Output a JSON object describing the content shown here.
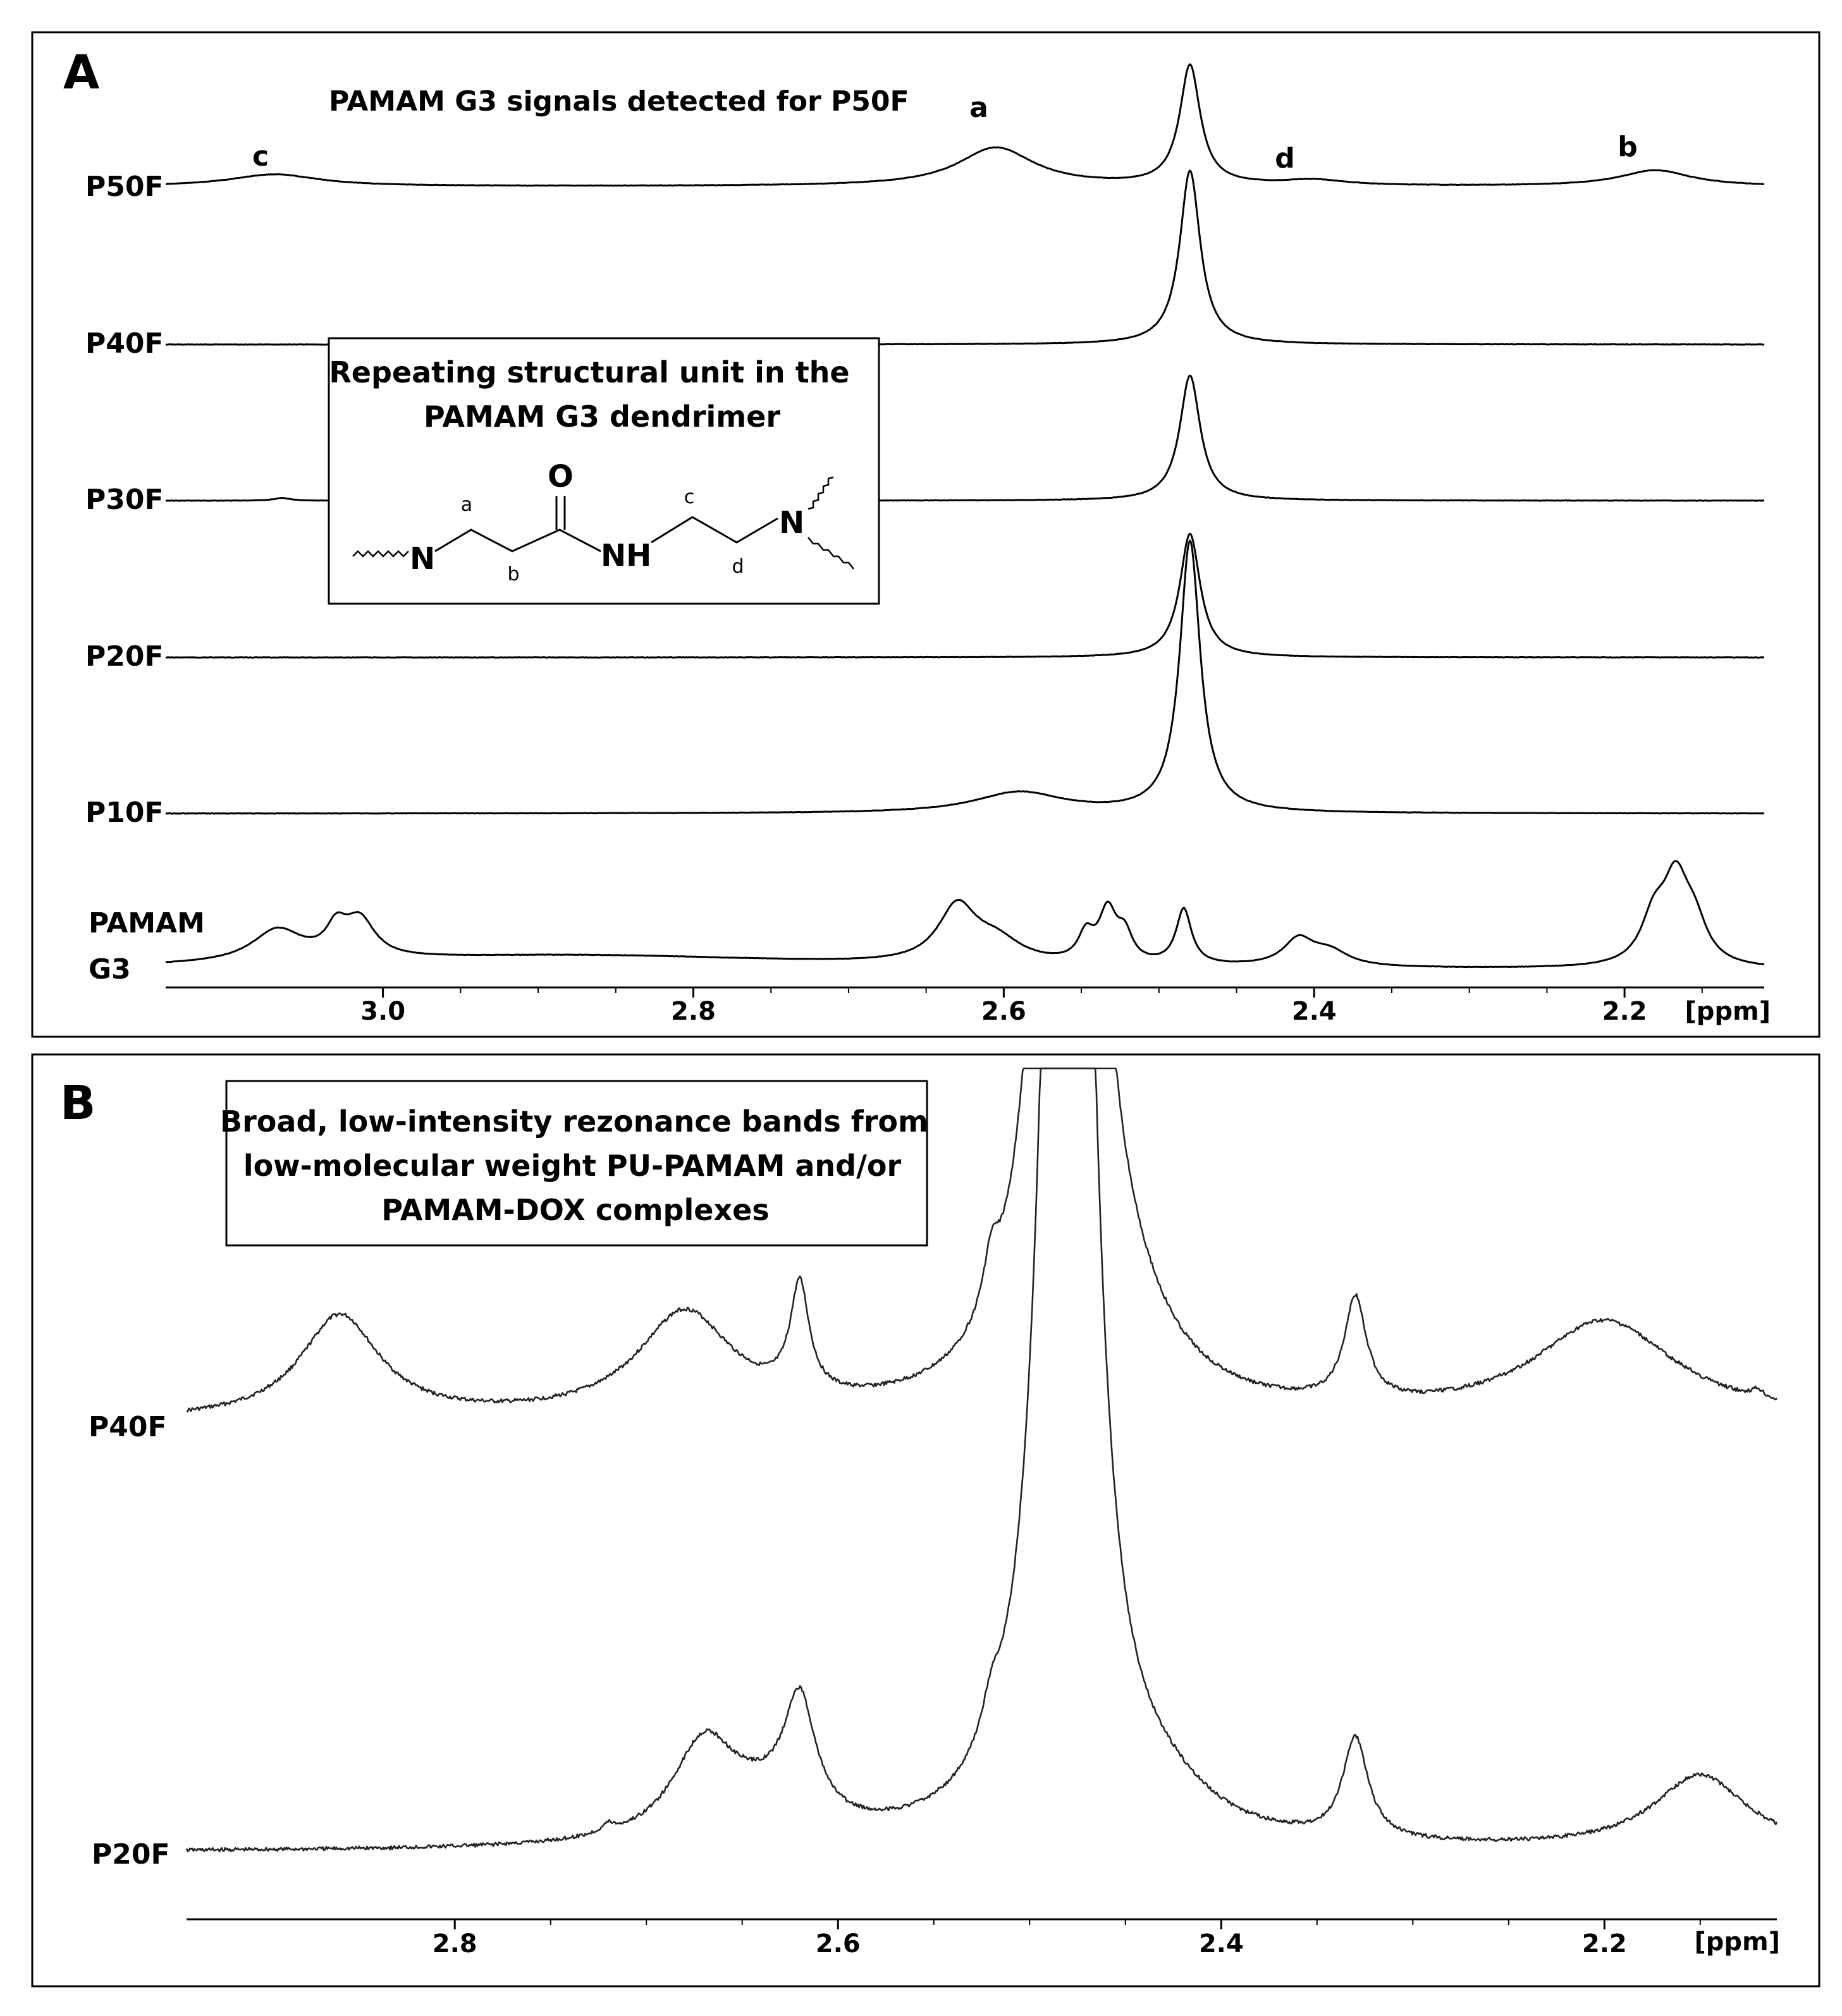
{
  "chart_data": [
    {
      "panel": "A",
      "type": "line",
      "title": "PAMAM G3 signals detected for P50F",
      "xlabel": "[ppm]",
      "xlim": [
        3.14,
        2.11
      ],
      "xticks": [
        3.0,
        2.8,
        2.6,
        2.4,
        2.2
      ],
      "xtick_labels": [
        "3.0",
        "2.8",
        "2.6",
        "2.4",
        "2.2"
      ],
      "peak_labels": [
        {
          "text": "c",
          "x": 3.07
        },
        {
          "text": "a",
          "x": 2.6
        },
        {
          "text": "d",
          "x": 2.4
        },
        {
          "text": "b",
          "x": 2.18
        }
      ],
      "inset": {
        "title_line1": "Repeating structural unit in the",
        "title_line2": "PAMAM G3 dendrimer",
        "atoms": [
          "N",
          "O",
          "NH",
          "N"
        ],
        "positions": [
          "a",
          "b",
          "c",
          "d"
        ]
      },
      "series": [
        {
          "name": "P50F",
          "baseline": 0.0,
          "peaks": [
            [
              3.07,
              0.09,
              0.035
            ],
            [
              2.605,
              0.29,
              0.03
            ],
            [
              2.48,
              0.9,
              0.008
            ],
            [
              2.4,
              0.04,
              0.025
            ],
            [
              2.18,
              0.12,
              0.028
            ]
          ]
        },
        {
          "name": "P40F",
          "baseline": 0.0,
          "peaks": [
            [
              2.48,
              1.1,
              0.008
            ]
          ]
        },
        {
          "name": "P30F",
          "baseline": 0.0,
          "peaks": [
            [
              3.065,
              0.02,
              0.006
            ],
            [
              2.48,
              0.9,
              0.008
            ]
          ]
        },
        {
          "name": "P20F",
          "baseline": 0.0,
          "peaks": [
            [
              2.48,
              0.85,
              0.008
            ]
          ]
        },
        {
          "name": "P10F",
          "baseline": 0.0,
          "peaks": [
            [
              2.59,
              0.1,
              0.035
            ],
            [
              2.48,
              1.3,
              0.008
            ]
          ]
        },
        {
          "name": "PAMAM G3",
          "baseline": 0.0,
          "peaks": [
            [
              3.068,
              0.22,
              0.02
            ],
            [
              3.03,
              0.18,
              0.008
            ],
            [
              3.015,
              0.26,
              0.012
            ],
            [
              2.88,
              0.1,
              0.2
            ],
            [
              2.63,
              0.38,
              0.015
            ],
            [
              2.605,
              0.15,
              0.02
            ],
            [
              2.547,
              0.18,
              0.006
            ],
            [
              2.533,
              0.35,
              0.007
            ],
            [
              2.522,
              0.18,
              0.006
            ],
            [
              2.484,
              0.38,
              0.006
            ],
            [
              2.41,
              0.18,
              0.012
            ],
            [
              2.39,
              0.1,
              0.015
            ],
            [
              2.181,
              0.3,
              0.01
            ],
            [
              2.167,
              0.54,
              0.01
            ],
            [
              2.155,
              0.25,
              0.01
            ]
          ]
        }
      ]
    },
    {
      "panel": "B",
      "type": "line",
      "title": "Broad, low-intensity rezonance bands from low-molecular weight PU-PAMAM and/or PAMAM-DOX complexes",
      "title_lines": [
        "Broad, low-intensity rezonance bands from",
        "low-molecular weight PU-PAMAM and/or",
        "PAMAM-DOX complexes"
      ],
      "xlabel": "[ppm]",
      "xlim": [
        2.94,
        2.11
      ],
      "xticks": [
        2.8,
        2.6,
        2.4,
        2.2
      ],
      "xtick_labels": [
        "2.8",
        "2.6",
        "2.4",
        "2.2"
      ],
      "series": [
        {
          "name": "P40F",
          "baseline": 0.0,
          "peaks": [
            [
              2.86,
              0.38,
              0.025
            ],
            [
              2.68,
              0.38,
              0.03
            ],
            [
              2.62,
              0.4,
              0.006
            ],
            [
              2.52,
              0.18,
              0.005
            ],
            [
              2.48,
              8.0,
              0.01
            ],
            [
              2.45,
              0.2,
              0.03
            ],
            [
              2.33,
              0.38,
              0.007
            ],
            [
              2.2,
              0.36,
              0.045
            ],
            [
              2.12,
              0.03,
              0.004
            ]
          ]
        },
        {
          "name": "P20F",
          "baseline": 0.0,
          "peaks": [
            [
              2.72,
              0.03,
              0.004
            ],
            [
              2.67,
              0.35,
              0.02
            ],
            [
              2.62,
              0.44,
              0.01
            ],
            [
              2.64,
              0.12,
              0.03
            ],
            [
              2.52,
              0.13,
              0.006
            ],
            [
              2.48,
              9.0,
              0.01
            ],
            [
              2.43,
              0.11,
              0.03
            ],
            [
              2.33,
              0.38,
              0.008
            ],
            [
              2.15,
              0.28,
              0.03
            ]
          ]
        }
      ]
    }
  ],
  "panel_a": {
    "letter": "A",
    "row_labels": [
      "P50F",
      "P40F",
      "P30F",
      "P20F",
      "P10F",
      "PAMAM",
      "G3"
    ]
  },
  "panel_b": {
    "letter": "B",
    "row_labels": [
      "P40F",
      "P20F"
    ]
  }
}
